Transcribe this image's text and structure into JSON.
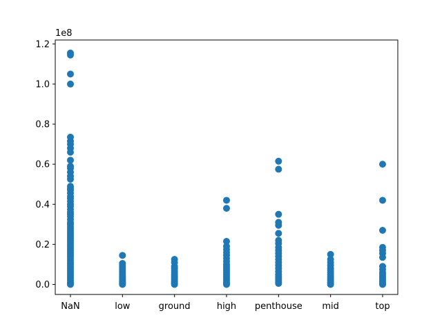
{
  "chart_data": {
    "type": "scatter",
    "title": "",
    "xlabel": "",
    "ylabel": "",
    "y_offset_label": "1e8",
    "y_scale_factor": 100000000,
    "categories": [
      "NaN",
      "low",
      "ground",
      "high",
      "penthouse",
      "mid",
      "top"
    ],
    "ylim": [
      -5000000,
      122000000
    ],
    "y_ticks": [
      0,
      20000000,
      40000000,
      60000000,
      80000000,
      100000000,
      120000000
    ],
    "y_tick_labels": [
      "0.0",
      "0.2",
      "0.4",
      "0.6",
      "0.8",
      "1.0",
      "1.2"
    ],
    "grid": false,
    "legend": "none",
    "marker_color": "#1f77b4",
    "points": {
      "NaN": [
        115500000,
        114500000,
        105000000,
        100000000,
        73500000,
        71500000,
        70000000,
        68000000,
        66000000,
        62000000,
        59000000,
        58000000,
        56000000,
        54000000,
        52500000,
        49000000,
        48000000,
        47000000,
        45500000,
        44000000,
        43000000,
        41500000,
        40000000,
        39000000,
        37500000,
        36000000,
        35000000,
        34000000,
        32500000,
        31000000,
        30000000,
        29000000,
        28000000,
        27000000,
        26000000,
        25000000,
        24000000,
        23000000,
        22000000,
        21000000,
        20000000,
        19000000,
        18000000,
        17000000,
        16000000,
        15000000,
        14000000,
        13000000,
        12000000,
        11000000,
        10000000,
        9000000,
        8000000,
        7000000,
        6000000,
        5000000,
        4000000,
        3000000,
        2000000,
        1000000,
        500000,
        0
      ],
      "low": [
        14500000,
        10500000,
        9500000,
        8500000,
        7500000,
        6500000,
        5500000,
        4800000,
        4000000,
        3300000,
        2600000,
        2000000,
        1400000,
        900000,
        400000,
        0
      ],
      "ground": [
        12500000,
        11000000,
        9000000,
        8000000,
        7000000,
        6000000,
        5000000,
        4200000,
        3500000,
        2800000,
        2100000,
        1500000,
        900000,
        400000,
        0
      ],
      "high": [
        42000000,
        38000000,
        21500000,
        19000000,
        17500000,
        16000000,
        14500000,
        13000000,
        11500000,
        10000000,
        9000000,
        8000000,
        7000000,
        6000000,
        5000000,
        4000000,
        3000000,
        2000000,
        1000000,
        400000,
        0
      ],
      "penthouse": [
        61500000,
        57500000,
        35000000,
        31000000,
        29500000,
        25500000,
        22000000,
        20500000,
        18500000,
        17000000,
        15500000,
        14000000,
        12500000,
        11000000,
        9500000,
        8000000,
        6500000,
        5000000,
        4000000,
        3000000,
        2000000,
        1200000,
        500000
      ],
      "mid": [
        15000000,
        12500000,
        11000000,
        9500000,
        8000000,
        7000000,
        6000000,
        5000000,
        4000000,
        3200000,
        2400000,
        1700000,
        1000000,
        500000,
        0
      ],
      "top": [
        60000000,
        42000000,
        27000000,
        18500000,
        17000000,
        15500000,
        13500000,
        9000000,
        7500000,
        6000000,
        5000000,
        4000000,
        3000000,
        2000000,
        1200000,
        500000,
        0
      ]
    }
  }
}
